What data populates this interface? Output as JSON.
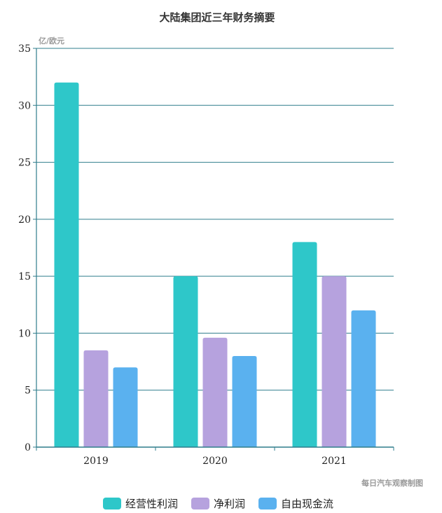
{
  "chart_data": {
    "type": "bar",
    "title": "大陆集团近三年财务摘要",
    "unit_label": "亿/欧元",
    "categories": [
      "2019",
      "2020",
      "2021"
    ],
    "series": [
      {
        "name": "经营性利润",
        "color": "#2ec7c9",
        "values": [
          32,
          15,
          18
        ]
      },
      {
        "name": "净利润",
        "color": "#b6a2de",
        "values": [
          8.5,
          9.6,
          15
        ]
      },
      {
        "name": "自由现金流",
        "color": "#5ab1ef",
        "values": [
          7,
          8,
          12
        ]
      }
    ],
    "ylim": [
      0,
      35
    ],
    "yticks": [
      0,
      5,
      10,
      15,
      20,
      25,
      30,
      35
    ],
    "grid": true,
    "legend_position": "bottom",
    "credit": "每日汽车观察制图",
    "colors": {
      "grid": "#2f7d8c",
      "axis": "#2f7d8c"
    }
  }
}
